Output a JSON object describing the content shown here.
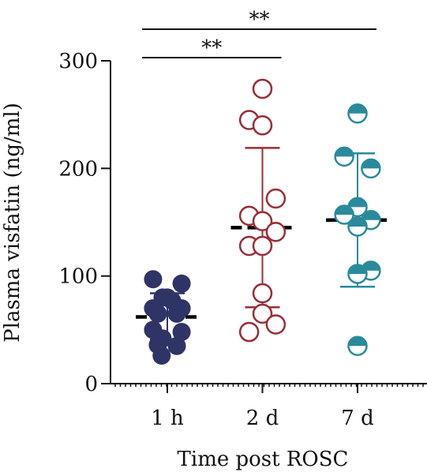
{
  "chart_data": {
    "type": "scatter",
    "xlabel": "Time post ROSC",
    "ylabel": "Plasma visfatin (ng/ml)",
    "ylim": [
      0,
      300
    ],
    "yticks": [
      0,
      100,
      200,
      300
    ],
    "categories": [
      "1 h",
      "2 d",
      "7 d"
    ],
    "grid": false,
    "series": [
      {
        "category": "1 h",
        "color": "#2e3466",
        "marker": "filled-circle",
        "mean": 62,
        "sd_upper": 84,
        "sd_lower": 41,
        "points": [
          {
            "offset": -0.15,
            "y": 97
          },
          {
            "offset": 0.15,
            "y": 93
          },
          {
            "offset": -0.05,
            "y": 80
          },
          {
            "offset": 0.0,
            "y": 80
          },
          {
            "offset": 0.05,
            "y": 77
          },
          {
            "offset": -0.15,
            "y": 70
          },
          {
            "offset": 0.15,
            "y": 70
          },
          {
            "offset": -0.1,
            "y": 65
          },
          {
            "offset": 0.1,
            "y": 65
          },
          {
            "offset": -0.15,
            "y": 50
          },
          {
            "offset": 0.15,
            "y": 48
          },
          {
            "offset": -0.05,
            "y": 42
          },
          {
            "offset": -0.1,
            "y": 36
          },
          {
            "offset": 0.1,
            "y": 35
          },
          {
            "offset": -0.06,
            "y": 26
          }
        ]
      },
      {
        "category": "2 d",
        "color": "#9b2d35",
        "marker": "open-circle",
        "mean": 145,
        "sd_upper": 219,
        "sd_lower": 71,
        "points": [
          {
            "offset": 0.0,
            "y": 274
          },
          {
            "offset": -0.14,
            "y": 245
          },
          {
            "offset": 0.0,
            "y": 240
          },
          {
            "offset": 0.14,
            "y": 172
          },
          {
            "offset": -0.14,
            "y": 156
          },
          {
            "offset": 0.0,
            "y": 151
          },
          {
            "offset": 0.14,
            "y": 141
          },
          {
            "offset": -0.14,
            "y": 128
          },
          {
            "offset": 0.0,
            "y": 128
          },
          {
            "offset": 0.0,
            "y": 84
          },
          {
            "offset": 0.0,
            "y": 65
          },
          {
            "offset": 0.14,
            "y": 55
          },
          {
            "offset": -0.14,
            "y": 48
          }
        ]
      },
      {
        "category": "7 d",
        "color": "#2a8a9c",
        "marker": "half-filled-circle",
        "mean": 152,
        "sd_upper": 214,
        "sd_lower": 90,
        "points": [
          {
            "offset": 0.0,
            "y": 251
          },
          {
            "offset": -0.14,
            "y": 211
          },
          {
            "offset": 0.14,
            "y": 200
          },
          {
            "offset": 0.0,
            "y": 164
          },
          {
            "offset": -0.14,
            "y": 157
          },
          {
            "offset": 0.14,
            "y": 152
          },
          {
            "offset": 0.0,
            "y": 146
          },
          {
            "offset": 0.14,
            "y": 105
          },
          {
            "offset": 0.0,
            "y": 102
          },
          {
            "offset": 0.0,
            "y": 35
          }
        ]
      }
    ],
    "significance": [
      {
        "from": "1 h",
        "to": "2 d",
        "label": "**"
      },
      {
        "from": "1 h",
        "to": "7 d",
        "label": "**"
      }
    ]
  }
}
